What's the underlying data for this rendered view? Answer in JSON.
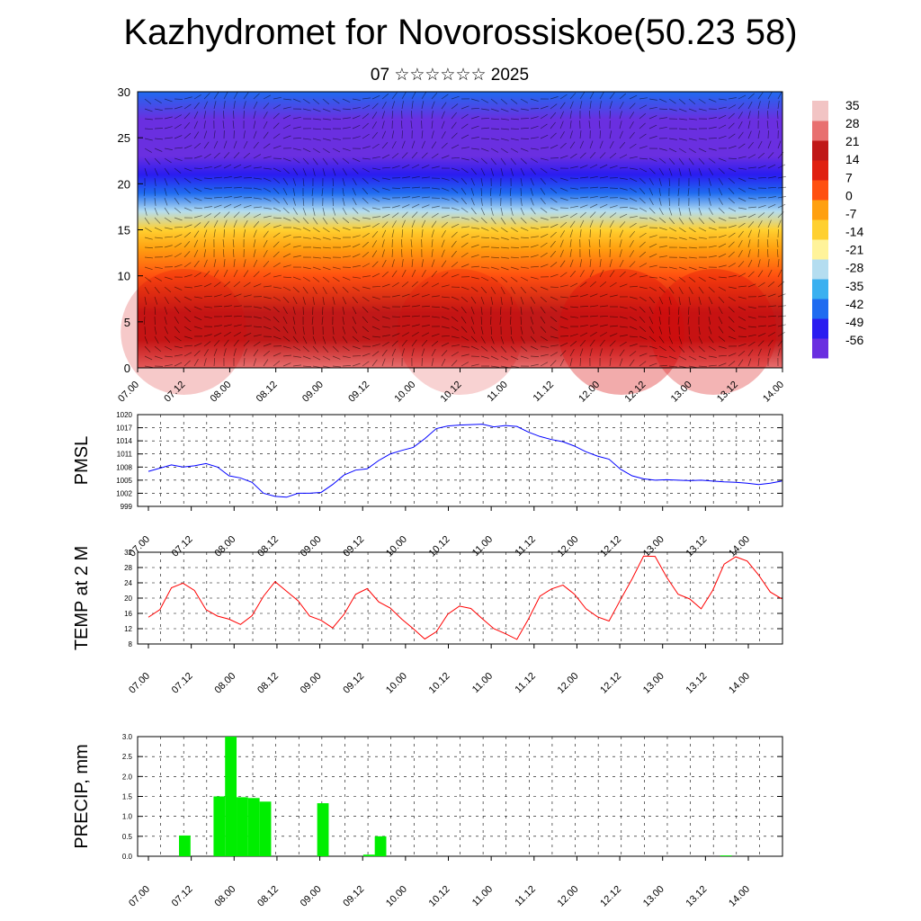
{
  "title": "Kazhydromet for Novorossiskoe(50.23 58)",
  "subtitle": "07 ☆☆☆☆☆☆ 2025",
  "time_ticks": [
    "07.00",
    "07.12",
    "08.00",
    "08.12",
    "09.00",
    "09.12",
    "10.00",
    "10.12",
    "11.00",
    "11.12",
    "12.00",
    "12.12",
    "13.00",
    "13.12",
    "14.00"
  ],
  "chart_data": [
    {
      "type": "heatmap",
      "name": "cross_section",
      "ylim": [
        0,
        30
      ],
      "y_ticks": [
        0,
        5,
        10,
        15,
        20,
        25,
        30
      ],
      "colorbar_labels": [
        "35",
        "28",
        "21",
        "14",
        "7",
        "0",
        "-7",
        "-14",
        "-21",
        "-28",
        "-35",
        "-42",
        "-49",
        "-56"
      ],
      "colorbar_range": [
        -63,
        42
      ],
      "colorbar_colors": [
        "#6a2fe0",
        "#2a1cf0",
        "#1f6bf0",
        "#3ab0f0",
        "#b4ddf0",
        "#fff39a",
        "#ffd030",
        "#ffa010",
        "#ff5010",
        "#e02010",
        "#c01818",
        "#e87070",
        "#f2c4c4"
      ],
      "temperature_profile": {
        "heights": [
          0,
          3,
          6,
          10,
          13,
          15,
          17,
          19,
          21,
          23,
          25,
          27,
          30
        ],
        "values": [
          28,
          24,
          18,
          7,
          0,
          -14,
          -30,
          -42,
          -52,
          -58,
          -62,
          -55,
          -45
        ]
      }
    },
    {
      "type": "line",
      "name": "PMSL",
      "ylabel": "PMSL",
      "ylim": [
        999,
        1020
      ],
      "y_ticks": [
        999,
        1002,
        1005,
        1008,
        1011,
        1014,
        1017,
        1020
      ],
      "color": "#0000ff",
      "x_hours": [
        0,
        6,
        9,
        12,
        15,
        18,
        21,
        24,
        27,
        30,
        33,
        36,
        39,
        42,
        45,
        48,
        51,
        54,
        57,
        60,
        63,
        66,
        69,
        72,
        75,
        78,
        81,
        84,
        87,
        90,
        93,
        96,
        99,
        102,
        105,
        108,
        111,
        114,
        117,
        120,
        123,
        126,
        129,
        132,
        135,
        138,
        141,
        144,
        147,
        150,
        153,
        156,
        159,
        162,
        165
      ],
      "values": [
        1007,
        1008.5,
        1008,
        1008.3,
        1008.8,
        1008,
        1006,
        1005.5,
        1004.5,
        1002,
        1001.3,
        1001.1,
        1002,
        1002,
        1002.2,
        1004,
        1006.2,
        1007.3,
        1007.6,
        1009.5,
        1011,
        1011.8,
        1012.5,
        1014.5,
        1016.8,
        1017.4,
        1017.6,
        1017.7,
        1017.8,
        1017.2,
        1017.5,
        1017.3,
        1016,
        1015,
        1014.3,
        1013.8,
        1012.8,
        1011.5,
        1010.5,
        1009.8,
        1007.5,
        1006,
        1005.3,
        1005,
        1005.1,
        1005,
        1004.9,
        1005,
        1004.8,
        1004.6,
        1004.5,
        1004.3,
        1004,
        1004.3,
        1004.8
      ]
    },
    {
      "type": "line",
      "name": "TEMP at 2 M",
      "ylabel": "TEMP at 2 M",
      "ylim": [
        8,
        32
      ],
      "y_ticks": [
        8,
        12,
        16,
        20,
        24,
        28,
        32
      ],
      "color": "#ff0000",
      "x_hours": [
        0,
        3,
        6,
        9,
        12,
        15,
        18,
        21,
        24,
        27,
        30,
        33,
        36,
        39,
        42,
        45,
        48,
        51,
        54,
        57,
        60,
        63,
        66,
        69,
        72,
        75,
        78,
        81,
        84,
        87,
        90,
        93,
        96,
        99,
        102,
        105,
        108,
        111,
        114,
        117,
        120,
        123,
        126,
        129,
        132,
        135,
        138,
        141,
        144,
        147,
        150,
        153,
        156,
        159,
        162,
        165
      ],
      "values": [
        15,
        17,
        22.7,
        23.9,
        22,
        17,
        15.3,
        14.5,
        13.1,
        15.4,
        20.5,
        24.3,
        21.8,
        19.3,
        15.3,
        14.2,
        12.2,
        15.8,
        21,
        22.5,
        19,
        17.4,
        14.5,
        12,
        9.3,
        11.2,
        15.8,
        17.9,
        17.3,
        14.6,
        12,
        10.7,
        9.2,
        14.5,
        20.5,
        22.4,
        23.4,
        21,
        17.2,
        15.1,
        14,
        19.6,
        25,
        31,
        30.9,
        25.5,
        21,
        19.8,
        17.2,
        22,
        28.9,
        30.8,
        29.7,
        26,
        21.6,
        19.8
      ]
    },
    {
      "type": "bar",
      "name": "PRECIP, mm",
      "ylabel": "PRECIP, mm",
      "ylim": [
        0,
        3
      ],
      "y_ticks": [
        "0.0",
        "0.5",
        "1.0",
        "1.5",
        "2.0",
        "2.5",
        "3.0"
      ],
      "color": "#00ee00",
      "bar_width_hours": 3,
      "x_hours": [
        9,
        18,
        21,
        24,
        27,
        30,
        45,
        57,
        60,
        150
      ],
      "values": [
        0.52,
        1.5,
        3.0,
        1.48,
        1.46,
        1.37,
        1.33,
        0.04,
        0.5,
        0.02
      ]
    }
  ]
}
